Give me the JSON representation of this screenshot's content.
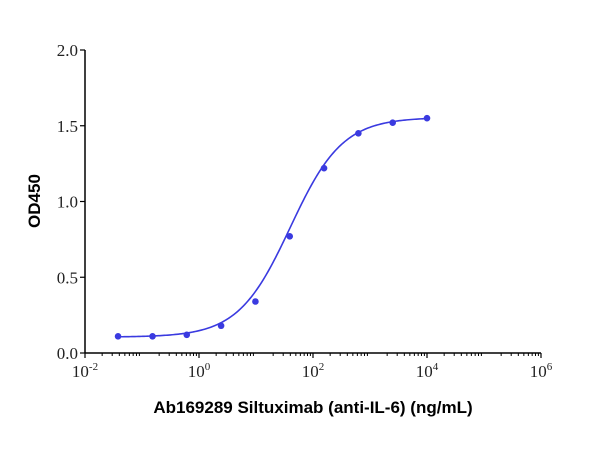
{
  "chart_data": {
    "type": "line",
    "title": "",
    "xlabel": "Ab169289 Siltuximab (anti-IL-6) (ng/mL)",
    "ylabel": "OD450",
    "xscale": "log",
    "xlim": [
      0.01,
      1000000
    ],
    "ylim": [
      0,
      2.0
    ],
    "x_ticks": [
      {
        "value": 0.01,
        "base": "10",
        "exp": "-2"
      },
      {
        "value": 1,
        "base": "10",
        "exp": "0"
      },
      {
        "value": 100,
        "base": "10",
        "exp": "2"
      },
      {
        "value": 10000,
        "base": "10",
        "exp": "4"
      },
      {
        "value": 1000000,
        "base": "10",
        "exp": "6"
      }
    ],
    "y_ticks": [
      {
        "value": 0.0,
        "label": "0.0"
      },
      {
        "value": 0.5,
        "label": "0.5"
      },
      {
        "value": 1.0,
        "label": "1.0"
      },
      {
        "value": 1.5,
        "label": "1.5"
      },
      {
        "value": 2.0,
        "label": "2.0"
      }
    ],
    "grid": false,
    "legend": null,
    "series": [
      {
        "name": "Siltuximab",
        "color": "#3a3ae0",
        "fit": "4PL sigmoid",
        "x": [
          0.038,
          0.153,
          0.61,
          2.44,
          9.77,
          39.06,
          156.25,
          625,
          2500,
          10000
        ],
        "y": [
          0.11,
          0.11,
          0.12,
          0.18,
          0.34,
          0.77,
          1.22,
          1.45,
          1.52,
          1.55
        ]
      }
    ]
  }
}
